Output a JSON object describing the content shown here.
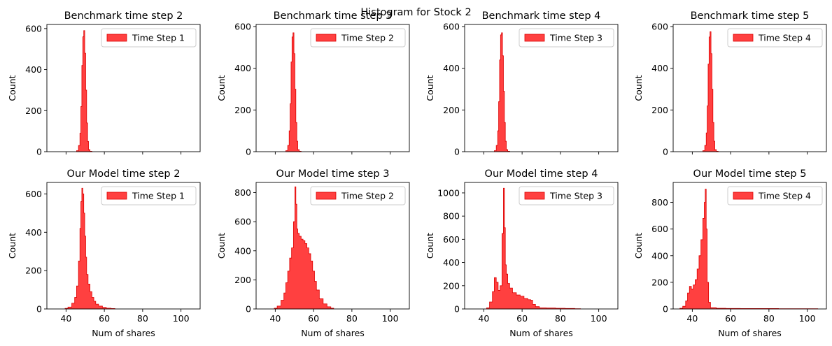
{
  "figure": {
    "suptitle": "Histogram for Stock 2"
  },
  "style": {
    "bar_fill": "#ff0000",
    "bar_fill_opacity": 0.75,
    "bar_edge": "#dd0000"
  },
  "chart_data": [
    {
      "type": "bar",
      "title": "Benchmark time step 2",
      "xlabel": "",
      "ylabel": "Count",
      "xlim": [
        30,
        110
      ],
      "ylim": [
        0,
        620
      ],
      "xticks": [
        40,
        60,
        80,
        100
      ],
      "xtick_labels_visible": false,
      "yticks": [
        0,
        200,
        400,
        600
      ],
      "legend": "Time Step 1",
      "legend_position": "upper right",
      "grid": false,
      "histogram": {
        "x": [
          46,
          47,
          47.5,
          48,
          48.5,
          49,
          49.5,
          50,
          50.5,
          51,
          51.5,
          52,
          53
        ],
        "values": [
          5,
          30,
          90,
          220,
          420,
          560,
          590,
          480,
          300,
          140,
          50,
          10,
          2
        ]
      }
    },
    {
      "type": "bar",
      "title": "Benchmark time step 3",
      "xlabel": "",
      "ylabel": "Count",
      "xlim": [
        30,
        110
      ],
      "ylim": [
        0,
        610
      ],
      "xticks": [
        40,
        60,
        80,
        100
      ],
      "xtick_labels_visible": false,
      "yticks": [
        0,
        200,
        400,
        600
      ],
      "legend": "Time Step 2",
      "legend_position": "upper right",
      "grid": false,
      "histogram": {
        "x": [
          46,
          47,
          47.5,
          48,
          48.5,
          49,
          49.5,
          50,
          50.5,
          51,
          51.5,
          52,
          53
        ],
        "values": [
          5,
          30,
          100,
          230,
          430,
          550,
          570,
          470,
          300,
          140,
          50,
          10,
          2
        ]
      }
    },
    {
      "type": "bar",
      "title": "Benchmark time step 4",
      "xlabel": "",
      "ylabel": "Count",
      "xlim": [
        30,
        110
      ],
      "ylim": [
        0,
        610
      ],
      "xticks": [
        40,
        60,
        80,
        100
      ],
      "xtick_labels_visible": false,
      "yticks": [
        0,
        200,
        400,
        600
      ],
      "legend": "Time Step 3",
      "legend_position": "upper right",
      "grid": false,
      "histogram": {
        "x": [
          46,
          47,
          47.5,
          48,
          48.5,
          49,
          49.5,
          50,
          50.5,
          51,
          51.5,
          52,
          53
        ],
        "values": [
          5,
          30,
          100,
          240,
          440,
          560,
          570,
          460,
          290,
          140,
          50,
          10,
          2
        ]
      }
    },
    {
      "type": "bar",
      "title": "Benchmark time step 5",
      "xlabel": "",
      "ylabel": "Count",
      "xlim": [
        30,
        110
      ],
      "ylim": [
        0,
        610
      ],
      "xticks": [
        40,
        60,
        80,
        100
      ],
      "xtick_labels_visible": false,
      "yticks": [
        0,
        200,
        400,
        600
      ],
      "legend": "Time Step 4",
      "legend_position": "upper right",
      "grid": false,
      "histogram": {
        "x": [
          46,
          47,
          47.5,
          48,
          48.5,
          49,
          49.5,
          50,
          50.5,
          51,
          51.5,
          52,
          53
        ],
        "values": [
          5,
          30,
          90,
          220,
          420,
          550,
          575,
          470,
          300,
          140,
          50,
          10,
          2
        ]
      }
    },
    {
      "type": "bar",
      "title": "Our Model time step 2",
      "xlabel": "Num of shares",
      "ylabel": "Count",
      "xlim": [
        30,
        110
      ],
      "ylim": [
        0,
        660
      ],
      "xticks": [
        40,
        60,
        80,
        100
      ],
      "xtick_labels_visible": true,
      "yticks": [
        0,
        200,
        400,
        600
      ],
      "legend": "Time Step 1",
      "legend_position": "upper right",
      "grid": false,
      "histogram": {
        "x": [
          40,
          42,
          44,
          45,
          46,
          47,
          47.5,
          48,
          48.5,
          49,
          49.5,
          50,
          50.5,
          51,
          52,
          53,
          54,
          55,
          56,
          58,
          60,
          62,
          65
        ],
        "values": [
          3,
          10,
          30,
          60,
          120,
          250,
          420,
          560,
          630,
          600,
          500,
          380,
          270,
          180,
          130,
          90,
          60,
          40,
          25,
          15,
          8,
          4,
          2
        ]
      }
    },
    {
      "type": "bar",
      "title": "Our Model time step 3",
      "xlabel": "Num of shares",
      "ylabel": "Count",
      "xlim": [
        30,
        110
      ],
      "ylim": [
        0,
        870
      ],
      "xticks": [
        40,
        60,
        80,
        100
      ],
      "xtick_labels_visible": true,
      "yticks": [
        0,
        200,
        400,
        600,
        800
      ],
      "legend": "Time Step 2",
      "legend_position": "upper right",
      "grid": false,
      "histogram": {
        "x": [
          40,
          42,
          44,
          45,
          46,
          47,
          48,
          49,
          50,
          50.5,
          51,
          51.5,
          52,
          53,
          54,
          55,
          56,
          57,
          58,
          59,
          60,
          61,
          62,
          64,
          66,
          68,
          70
        ],
        "values": [
          5,
          20,
          60,
          110,
          180,
          260,
          350,
          420,
          600,
          840,
          720,
          550,
          520,
          500,
          480,
          470,
          450,
          420,
          380,
          330,
          260,
          190,
          130,
          70,
          35,
          15,
          5
        ]
      }
    },
    {
      "type": "bar",
      "title": "Our Model time step 4",
      "xlabel": "Num of shares",
      "ylabel": "Count",
      "xlim": [
        30,
        110
      ],
      "ylim": [
        0,
        1090
      ],
      "xticks": [
        40,
        60,
        80,
        100
      ],
      "xtick_labels_visible": true,
      "yticks": [
        0,
        200,
        400,
        600,
        800,
        1000
      ],
      "legend": "Time Step 3",
      "legend_position": "upper right",
      "grid": false,
      "histogram": {
        "x": [
          42,
          44,
          45,
          46,
          47,
          48,
          49,
          50,
          50.5,
          51,
          51.5,
          52,
          53,
          54,
          56,
          58,
          60,
          62,
          64,
          65,
          66,
          68,
          70,
          75,
          80,
          85,
          90
        ],
        "values": [
          10,
          60,
          150,
          270,
          230,
          160,
          200,
          650,
          1040,
          700,
          380,
          300,
          220,
          180,
          140,
          120,
          110,
          90,
          80,
          75,
          40,
          20,
          10,
          8,
          6,
          4,
          2
        ]
      }
    },
    {
      "type": "bar",
      "title": "Our Model time step 5",
      "xlabel": "Num of shares",
      "ylabel": "Count",
      "xlim": [
        30,
        110
      ],
      "ylim": [
        0,
        950
      ],
      "xticks": [
        40,
        60,
        80,
        100
      ],
      "xtick_labels_visible": true,
      "yticks": [
        0,
        200,
        400,
        600,
        800
      ],
      "legend": "Time Step 4",
      "legend_position": "upper right",
      "grid": false,
      "histogram": {
        "x": [
          34,
          36,
          37,
          38,
          39,
          40,
          41,
          42,
          43,
          44,
          45,
          46,
          46.5,
          47,
          47.5,
          48,
          49,
          50,
          55,
          60,
          70,
          80,
          90,
          100,
          105
        ],
        "values": [
          5,
          20,
          60,
          120,
          170,
          150,
          180,
          220,
          300,
          400,
          520,
          680,
          800,
          900,
          600,
          200,
          50,
          10,
          5,
          4,
          3,
          3,
          2,
          2,
          2
        ]
      }
    }
  ]
}
